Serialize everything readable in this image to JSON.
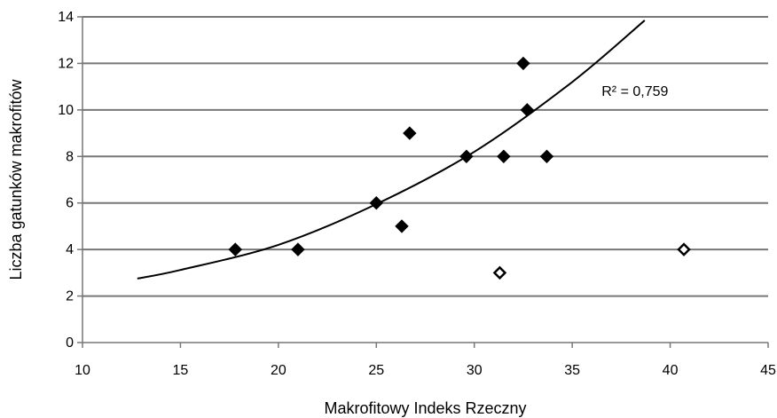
{
  "chart_data": {
    "type": "scatter",
    "title": "",
    "xlabel": "Makrofitowy Indeks Rzeczny",
    "ylabel": "Liczba gatunków makrofitów",
    "xlim": [
      10,
      45
    ],
    "ylim": [
      0,
      14
    ],
    "x_ticks": [
      "10",
      "15",
      "20",
      "25",
      "30",
      "35",
      "40",
      "45"
    ],
    "y_ticks": [
      "0",
      "2",
      "4",
      "6",
      "8",
      "10",
      "12",
      "14"
    ],
    "grid": "horizontal",
    "legend": "none",
    "series": [
      {
        "marker": "filled-diamond",
        "color": "#000000",
        "points": [
          {
            "x": 17.8,
            "y": 4
          },
          {
            "x": 21.0,
            "y": 4
          },
          {
            "x": 25.0,
            "y": 6
          },
          {
            "x": 26.3,
            "y": 5
          },
          {
            "x": 26.7,
            "y": 9
          },
          {
            "x": 29.6,
            "y": 8
          },
          {
            "x": 31.5,
            "y": 8
          },
          {
            "x": 32.5,
            "y": 12
          },
          {
            "x": 32.7,
            "y": 10
          },
          {
            "x": 33.7,
            "y": 8
          }
        ]
      },
      {
        "marker": "open-diamond",
        "color": "#000000",
        "points": [
          {
            "x": 31.3,
            "y": 3
          },
          {
            "x": 40.7,
            "y": 4
          }
        ]
      }
    ],
    "trendline": {
      "type": "exponential",
      "points": [
        {
          "x": 12.8,
          "y": 2.75
        },
        {
          "x": 15,
          "y": 3.12
        },
        {
          "x": 20,
          "y": 4.2
        },
        {
          "x": 25,
          "y": 5.95
        },
        {
          "x": 30,
          "y": 8.2
        },
        {
          "x": 35,
          "y": 11.2
        },
        {
          "x": 38.7,
          "y": 13.85
        }
      ]
    },
    "annotations": [
      {
        "text": "R² = 0,759",
        "x": 38.2,
        "y": 10.8
      }
    ]
  }
}
